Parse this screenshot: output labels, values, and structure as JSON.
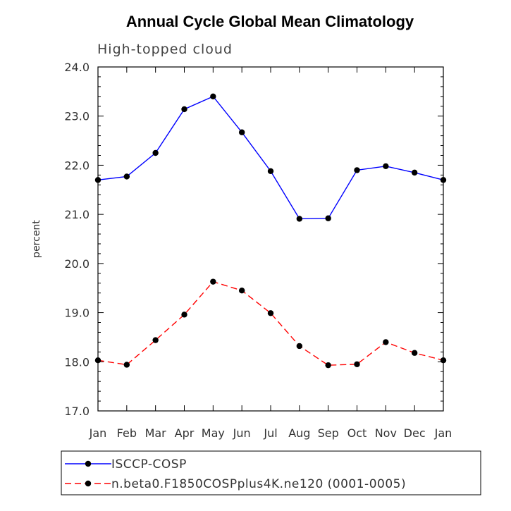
{
  "chart_data": {
    "type": "line",
    "title": "Annual Cycle Global Mean Climatology",
    "subtitle": "High-topped cloud",
    "xlabel": "",
    "ylabel": "percent",
    "categories": [
      "Jan",
      "Feb",
      "Mar",
      "Apr",
      "May",
      "Jun",
      "Jul",
      "Aug",
      "Sep",
      "Oct",
      "Nov",
      "Dec",
      "Jan"
    ],
    "ylim": [
      17.0,
      24.0
    ],
    "yticks": [
      "17.0",
      "18.0",
      "19.0",
      "20.0",
      "21.0",
      "22.0",
      "23.0",
      "24.0"
    ],
    "series": [
      {
        "name": "ISCCP-COSP",
        "color": "#0000ff",
        "dash": "solid",
        "values": [
          21.7,
          21.77,
          22.25,
          23.14,
          23.4,
          22.67,
          21.88,
          20.91,
          20.92,
          21.9,
          21.98,
          21.85,
          21.7
        ]
      },
      {
        "name": "n.beta0.F1850COSPplus4K.ne120 (0001-0005)",
        "color": "#ff0000",
        "dash": "dashed",
        "values": [
          18.03,
          17.94,
          18.44,
          18.96,
          19.63,
          19.45,
          18.99,
          18.32,
          17.93,
          17.95,
          18.4,
          18.18,
          18.03
        ]
      }
    ],
    "legend": "bottom"
  }
}
